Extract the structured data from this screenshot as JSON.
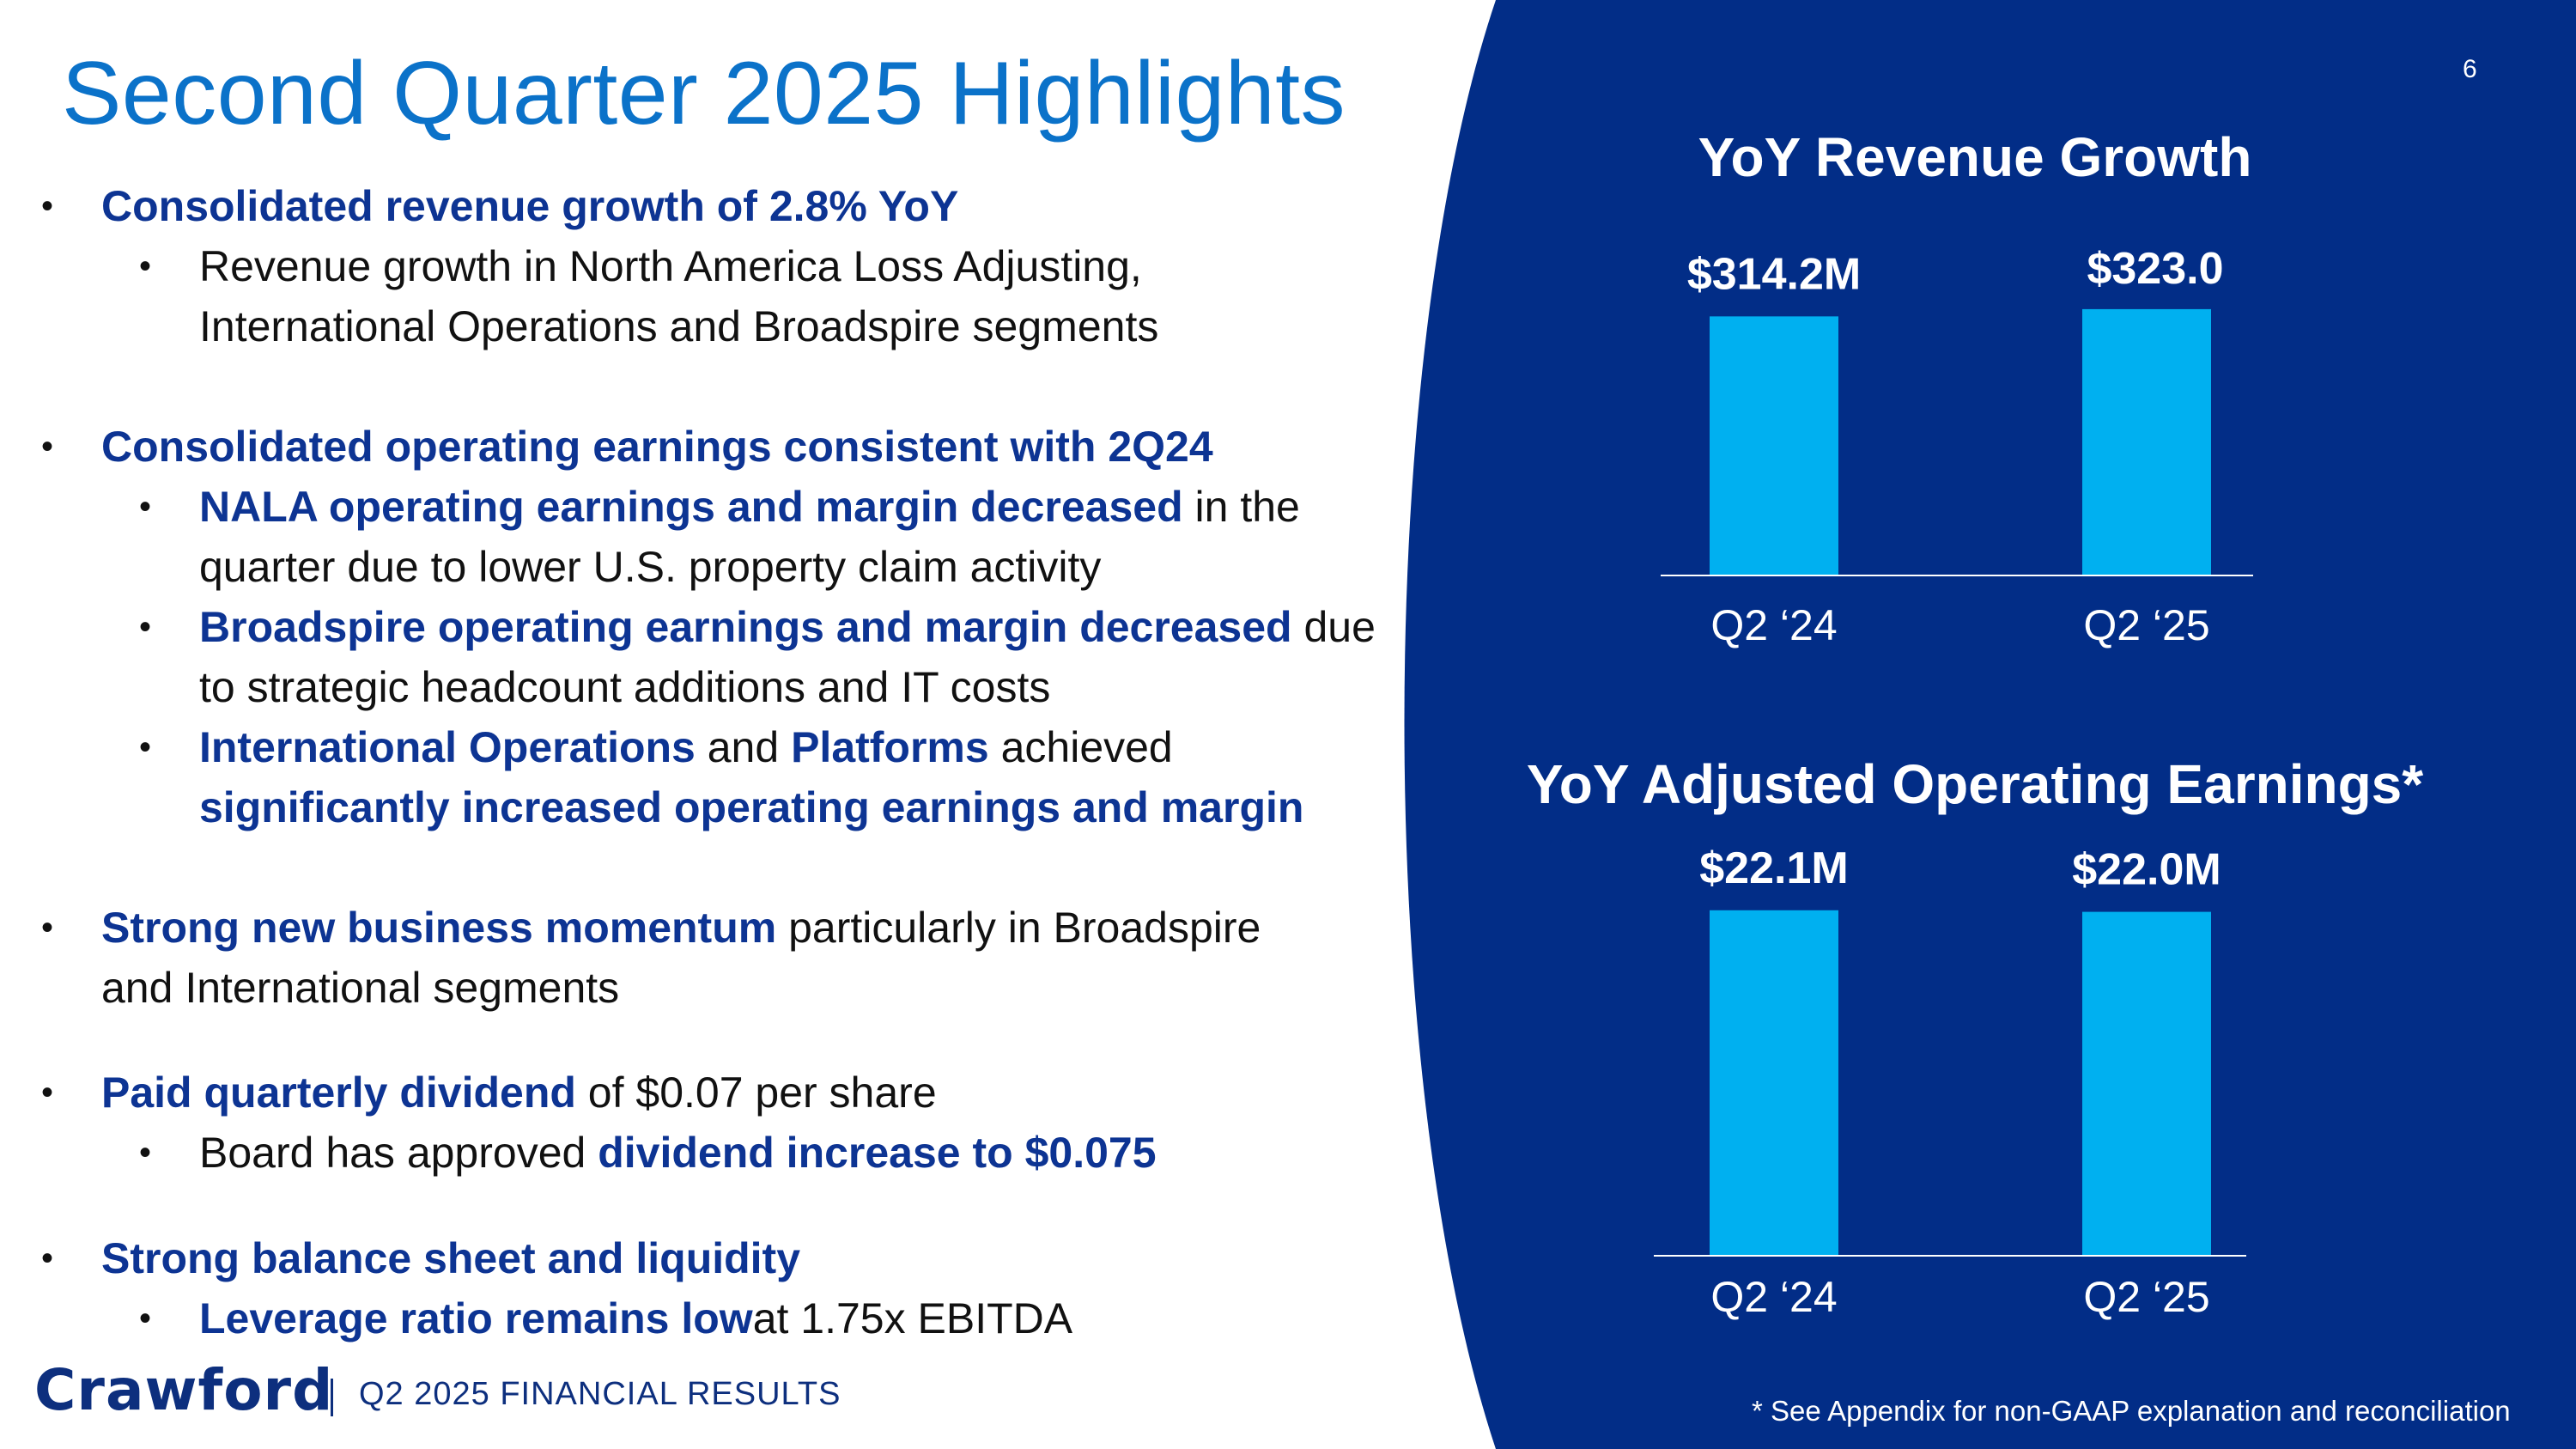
{
  "page": {
    "title": "Second Quarter 2025 Highlights",
    "page_number": "6"
  },
  "bullets": {
    "b1": {
      "hl": "Consolidated revenue growth of 2.8% YoY"
    },
    "b1a": {
      "line1": "Revenue growth in North America Loss Adjusting,",
      "line2": "International Operations and Broadspire segments"
    },
    "b2": {
      "hl": "Consolidated operating earnings consistent with 2Q24"
    },
    "b2a": {
      "hl": "NALA operating earnings and margin decreased",
      "rest": " in the",
      "line2": "quarter due to lower U.S. property claim activity"
    },
    "b2b": {
      "hl": "Broadspire operating earnings and margin decreased",
      "rest": " due",
      "line2": "to strategic headcount additions and IT costs"
    },
    "b2c": {
      "hl1": "International Operations",
      "mid": " and ",
      "hl2": "Platforms",
      "rest": " achieved",
      "line2": "significantly increased operating earnings and margin"
    },
    "b3": {
      "hl": "Strong new business momentum",
      "rest": " particularly in Broadspire",
      "line2": "and International segments"
    },
    "b4": {
      "hl": "Paid quarterly dividend",
      "rest": " of $0.07 per share"
    },
    "b4a": {
      "pre": "Board has approved ",
      "hl": "dividend increase to $0.075"
    },
    "b5": {
      "hl": "Strong balance sheet and liquidity"
    },
    "b5a": {
      "hl": "Leverage ratio remains low",
      "rest": "at 1.75x EBITDA"
    }
  },
  "footer": {
    "logo": "Crawford",
    "text": "Q2 2025 FINANCIAL RESULTS",
    "footnote": "* See Appendix for non-GAAP explanation and reconciliation"
  },
  "colors": {
    "accent": "#0b72c9",
    "highlight": "#0d3493",
    "panel": "#022d87",
    "bar": "#00b0f0"
  },
  "chart_data": [
    {
      "type": "bar",
      "title": "YoY Revenue Growth",
      "categories": [
        "Q2 ‘24",
        "Q2 ‘25"
      ],
      "values": [
        314.2,
        323.0
      ],
      "data_labels": [
        "$314.2M",
        "$323.0"
      ],
      "ylim": [
        0,
        400
      ],
      "xlabel": "",
      "ylabel": ""
    },
    {
      "type": "bar",
      "title": "YoY Adjusted Operating Earnings*",
      "categories": [
        "Q2 ‘24",
        "Q2 ‘25"
      ],
      "values": [
        22.1,
        22.0
      ],
      "data_labels": [
        "$22.1M",
        "$22.0M"
      ],
      "ylim": [
        0,
        25
      ],
      "xlabel": "",
      "ylabel": ""
    }
  ]
}
